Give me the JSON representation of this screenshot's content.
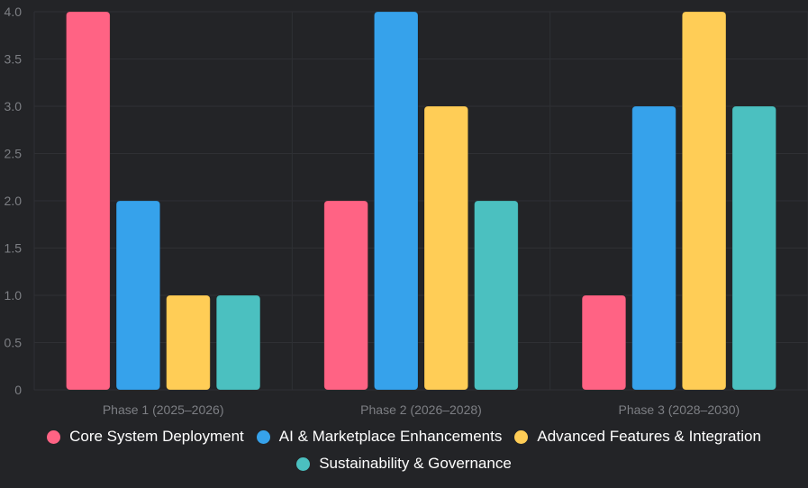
{
  "chart_data": {
    "type": "bar",
    "categories": [
      "Phase 1 (2025–2026)",
      "Phase 2 (2026–2028)",
      "Phase 3 (2028–2030)"
    ],
    "series": [
      {
        "name": "Core System Deployment",
        "color": "#ff6384",
        "values": [
          4,
          2,
          1
        ]
      },
      {
        "name": "AI & Marketplace Enhancements",
        "color": "#36a2eb",
        "values": [
          2,
          4,
          3
        ]
      },
      {
        "name": "Advanced Features & Integration",
        "color": "#ffcd56",
        "values": [
          1,
          3,
          4
        ]
      },
      {
        "name": "Sustainability & Governance",
        "color": "#4bc0c0",
        "values": [
          1,
          2,
          3
        ]
      }
    ],
    "ylim": [
      0,
      4
    ],
    "yticks": [
      "0",
      "0.5",
      "1.0",
      "1.5",
      "2.0",
      "2.5",
      "3.0",
      "3.5",
      "4.0"
    ],
    "grid": true,
    "legend_position": "bottom"
  },
  "colors": {
    "background": "#232427",
    "grid": "#2f3034",
    "tick_text": "#7d7f84",
    "legend_text": "#ffffff"
  }
}
